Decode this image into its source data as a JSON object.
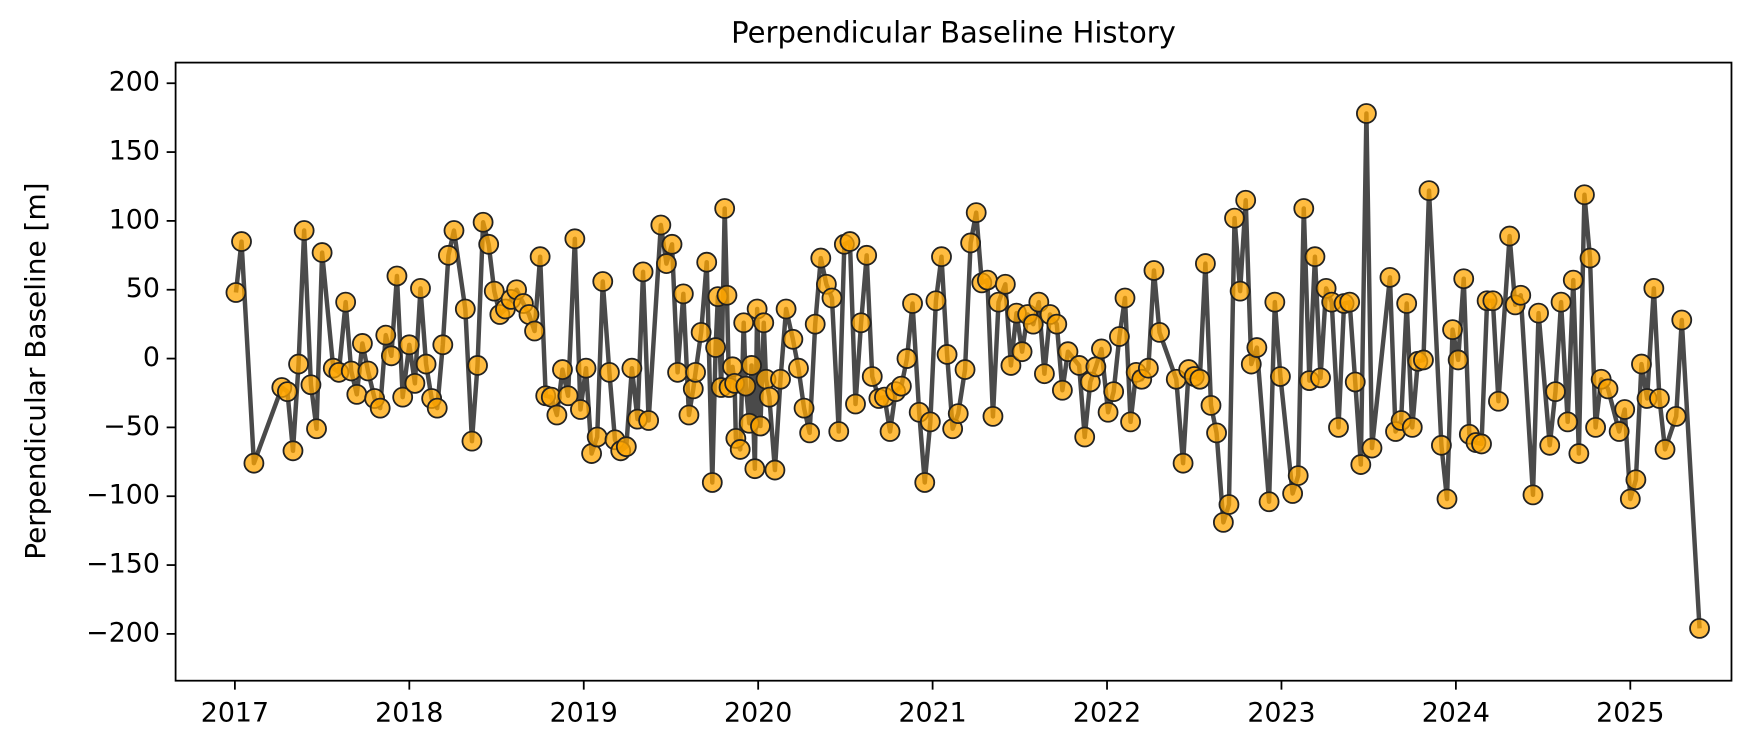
{
  "chart_data": {
    "type": "line",
    "title": "Perpendicular Baseline History",
    "ylabel": "Perpendicular Baseline [m]",
    "xlim": [
      2016.66,
      2025.58
    ],
    "xticks": [
      2017,
      2018,
      2019,
      2020,
      2021,
      2022,
      2023,
      2024,
      2025
    ],
    "ylim": [
      -234,
      215
    ],
    "yticks": [
      {
        "value": -200,
        "label": "−200"
      },
      {
        "value": -150,
        "label": "−150"
      },
      {
        "value": -100,
        "label": "−100"
      },
      {
        "value": -50,
        "label": "−50"
      },
      0,
      50,
      100,
      150,
      200
    ],
    "grid": false,
    "x": [
      2017.006,
      2017.038,
      2017.109,
      2017.269,
      2017.301,
      2017.333,
      2017.365,
      2017.397,
      2017.436,
      2017.468,
      2017.5,
      2017.564,
      2017.596,
      2017.635,
      2017.667,
      2017.699,
      2017.731,
      2017.763,
      2017.801,
      2017.833,
      2017.865,
      2017.897,
      2017.929,
      2017.962,
      2018.0,
      2018.032,
      2018.064,
      2018.096,
      2018.128,
      2018.16,
      2018.192,
      2018.224,
      2018.256,
      2018.321,
      2018.359,
      2018.391,
      2018.423,
      2018.455,
      2018.487,
      2018.519,
      2018.551,
      2018.583,
      2018.615,
      2018.654,
      2018.686,
      2018.718,
      2018.75,
      2018.782,
      2018.814,
      2018.846,
      2018.878,
      2018.91,
      2018.949,
      2018.981,
      2019.013,
      2019.045,
      2019.077,
      2019.109,
      2019.147,
      2019.179,
      2019.212,
      2019.244,
      2019.276,
      2019.308,
      2019.34,
      2019.372,
      2019.442,
      2019.474,
      2019.506,
      2019.538,
      2019.571,
      2019.603,
      2019.628,
      2019.641,
      2019.673,
      2019.705,
      2019.737,
      2019.756,
      2019.769,
      2019.788,
      2019.808,
      2019.821,
      2019.833,
      2019.853,
      2019.865,
      2019.872,
      2019.897,
      2019.917,
      2019.929,
      2019.949,
      2019.962,
      2019.981,
      2019.994,
      2020.013,
      2020.032,
      2020.045,
      2020.064,
      2020.096,
      2020.128,
      2020.16,
      2020.199,
      2020.231,
      2020.263,
      2020.295,
      2020.327,
      2020.359,
      2020.391,
      2020.423,
      2020.462,
      2020.494,
      2020.526,
      2020.558,
      2020.59,
      2020.622,
      2020.654,
      2020.692,
      2020.724,
      2020.756,
      2020.788,
      2020.821,
      2020.853,
      2020.885,
      2020.923,
      2020.955,
      2020.987,
      2021.019,
      2021.051,
      2021.083,
      2021.115,
      2021.147,
      2021.186,
      2021.218,
      2021.25,
      2021.282,
      2021.314,
      2021.346,
      2021.378,
      2021.417,
      2021.449,
      2021.481,
      2021.513,
      2021.545,
      2021.577,
      2021.609,
      2021.641,
      2021.673,
      2021.712,
      2021.744,
      2021.776,
      2021.84,
      2021.872,
      2021.904,
      2021.936,
      2021.968,
      2022.006,
      2022.038,
      2022.071,
      2022.103,
      2022.135,
      2022.167,
      2022.199,
      2022.237,
      2022.269,
      2022.301,
      2022.397,
      2022.436,
      2022.468,
      2022.5,
      2022.532,
      2022.564,
      2022.596,
      2022.628,
      2022.667,
      2022.699,
      2022.731,
      2022.763,
      2022.795,
      2022.827,
      2022.859,
      2022.929,
      2022.962,
      2022.994,
      2023.064,
      2023.096,
      2023.128,
      2023.16,
      2023.192,
      2023.224,
      2023.256,
      2023.288,
      2023.327,
      2023.359,
      2023.391,
      2023.423,
      2023.455,
      2023.487,
      2023.519,
      2023.622,
      2023.654,
      2023.686,
      2023.718,
      2023.75,
      2023.782,
      2023.814,
      2023.846,
      2023.917,
      2023.949,
      2023.981,
      2024.013,
      2024.045,
      2024.077,
      2024.115,
      2024.147,
      2024.179,
      2024.212,
      2024.244,
      2024.308,
      2024.34,
      2024.372,
      2024.442,
      2024.474,
      2024.538,
      2024.571,
      2024.603,
      2024.641,
      2024.673,
      2024.705,
      2024.737,
      2024.769,
      2024.801,
      2024.833,
      2024.872,
      2024.936,
      2024.968,
      2025.0,
      2025.032,
      2025.064,
      2025.096,
      2025.135,
      2025.167,
      2025.199,
      2025.263,
      2025.295,
      2025.397
    ],
    "series": [
      {
        "color": "#ffa500",
        "line_color": "#404040",
        "values": [
          48,
          85,
          -76,
          -21,
          -24,
          -67,
          -4,
          93,
          -19,
          -51,
          77,
          -7,
          -10,
          41,
          -9,
          -26,
          11,
          -9,
          -29,
          -36,
          17,
          2,
          60,
          -28,
          10,
          -18,
          51,
          -4,
          -29,
          -36,
          10,
          75,
          93,
          36,
          -60,
          -5,
          99,
          83,
          49,
          32,
          36,
          43,
          50,
          40,
          32,
          20,
          74,
          -27,
          -28,
          -41,
          -8,
          -27,
          87,
          -37,
          -7,
          -69,
          -57,
          56,
          -10,
          -59,
          -67,
          -64,
          -7,
          -44,
          63,
          -45,
          97,
          69,
          83,
          -10,
          47,
          -41,
          -22,
          -10,
          19,
          70,
          -90,
          8,
          45,
          -21,
          109,
          46,
          -21,
          -6,
          -18,
          -58,
          -66,
          26,
          -20,
          -47,
          -5,
          -80,
          36,
          -49,
          26,
          -15,
          -28,
          -81,
          -15,
          36,
          14,
          -7,
          -36,
          -54,
          25,
          73,
          54,
          44,
          -53,
          83,
          85,
          -33,
          26,
          75,
          -13,
          -29,
          -28,
          -53,
          -24,
          -20,
          0,
          40,
          -39,
          -90,
          -46,
          42,
          74,
          3,
          -51,
          -40,
          -8,
          84,
          106,
          55,
          57,
          -42,
          41,
          54,
          -5,
          33,
          5,
          32,
          25,
          41,
          -11,
          32,
          25,
          -23,
          5,
          -5,
          -57,
          -17,
          -6,
          7,
          -39,
          -24,
          16,
          44,
          -46,
          -10,
          -15,
          -7,
          64,
          19,
          -15,
          -76,
          -8,
          -13,
          -15,
          69,
          -34,
          -54,
          -119,
          -106,
          102,
          49,
          115,
          -4,
          8,
          -104,
          41,
          -13,
          -98,
          -85,
          109,
          -16,
          74,
          -14,
          51,
          41,
          -50,
          40,
          41,
          -17,
          -77,
          178,
          -65,
          59,
          -53,
          -45,
          40,
          -50,
          -2,
          -1,
          122,
          -63,
          -102,
          21,
          -1,
          58,
          -55,
          -61,
          -62,
          42,
          42,
          -31,
          89,
          39,
          46,
          -99,
          33,
          -63,
          -24,
          41,
          -46,
          57,
          -69,
          119,
          73,
          -50,
          -15,
          -22,
          -53,
          -37,
          -102,
          -88,
          -4,
          -29,
          51,
          -29,
          -66,
          -42,
          28,
          -196
        ]
      }
    ]
  }
}
